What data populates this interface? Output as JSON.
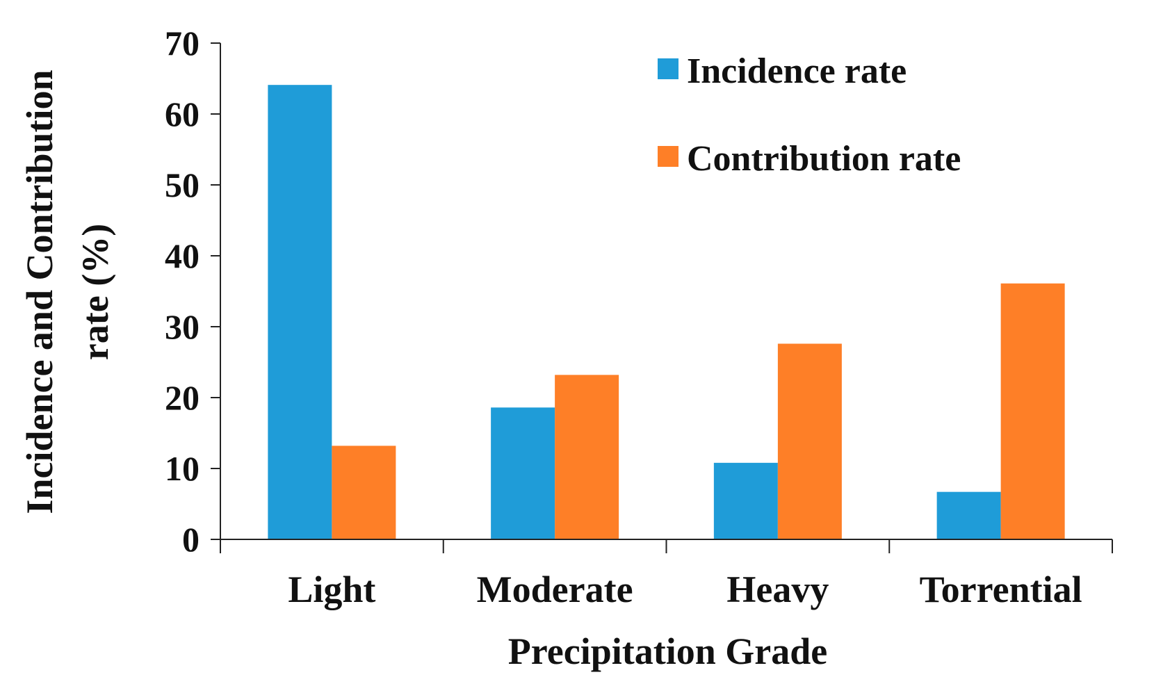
{
  "chart_data": {
    "type": "bar",
    "title": "",
    "xlabel": "Precipitation Grade",
    "ylabel_line1": "Incidence and Contribution",
    "ylabel_line2": "rate (%)",
    "categories": [
      "Light",
      "Moderate",
      "Heavy",
      "Torrential"
    ],
    "series": [
      {
        "name": "Incidence rate",
        "color": "#1F9CD8",
        "values": [
          64.1,
          18.6,
          10.8,
          6.7
        ]
      },
      {
        "name": "Contribution rate",
        "color": "#FE7F27",
        "values": [
          13.2,
          23.2,
          27.6,
          36.1
        ]
      }
    ],
    "ylim": [
      0,
      70
    ],
    "yticks": [
      0,
      10,
      20,
      30,
      40,
      50,
      60,
      70
    ],
    "legend_position": "top-right",
    "grid": false
  }
}
